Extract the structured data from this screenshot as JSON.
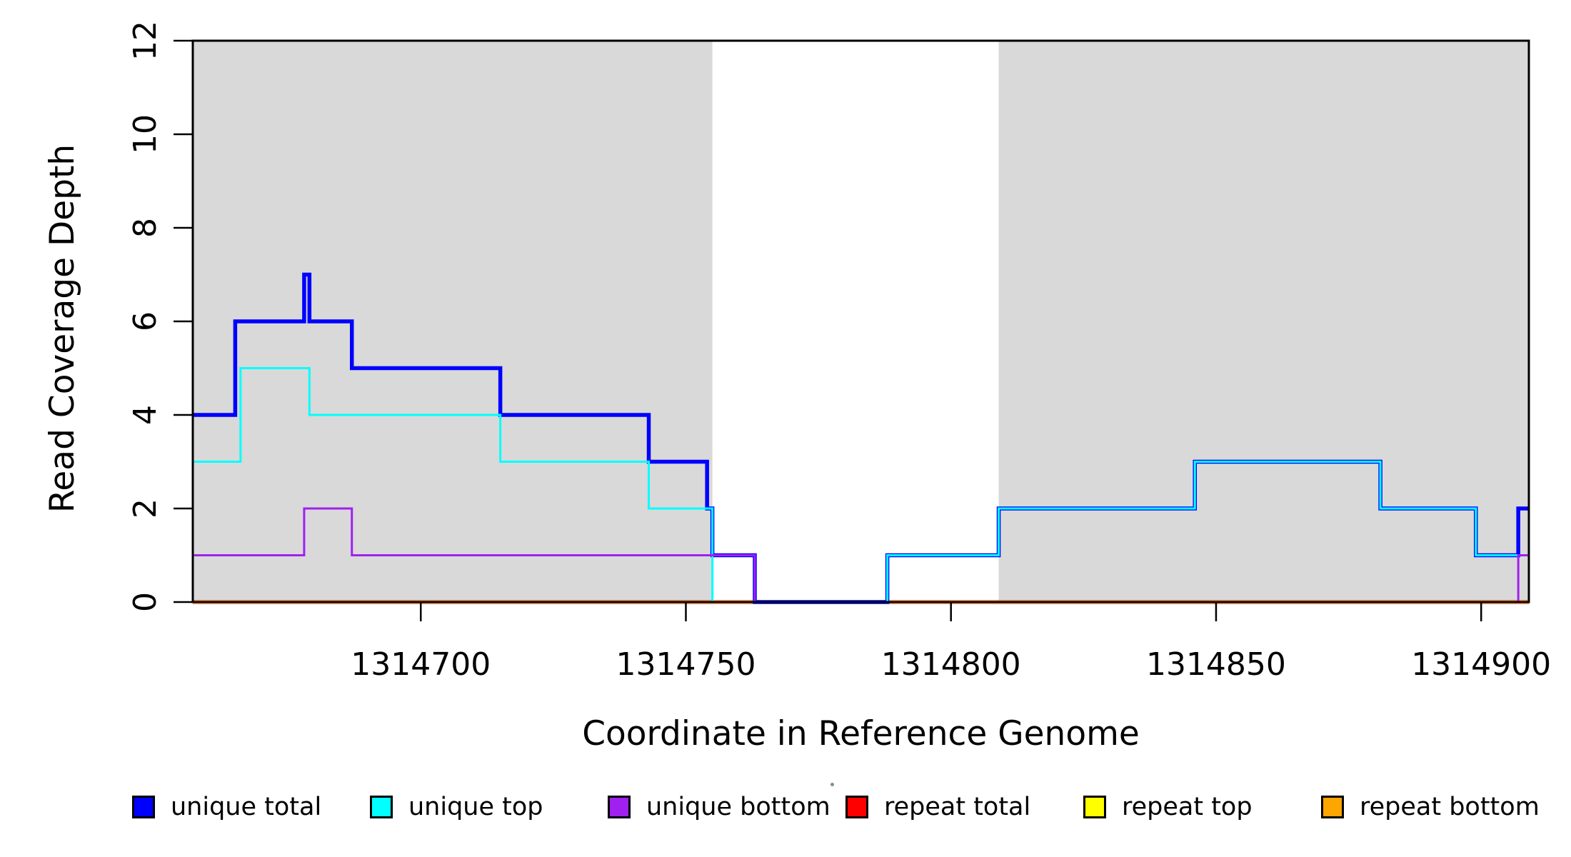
{
  "chart_data": {
    "type": "line",
    "subtype": "step-coverage",
    "title": "",
    "xlabel": "Coordinate in Reference Genome",
    "ylabel": "Read Coverage Depth",
    "xlim": [
      1314657,
      1314909
    ],
    "ylim": [
      0,
      12
    ],
    "xticks": [
      1314700,
      1314750,
      1314800,
      1314850,
      1314900
    ],
    "xtick_labels": [
      "1314700",
      "1314750",
      "1314800",
      "1314850",
      "1314900"
    ],
    "yticks": [
      0,
      2,
      4,
      6,
      8,
      10,
      12
    ],
    "ytick_labels": [
      "0",
      "2",
      "4",
      "6",
      "8",
      "10",
      "12"
    ],
    "grid": false,
    "legend_position": "bottom",
    "background_color": "#FFFFFF",
    "shaded_region_color": "#D9D9D9",
    "shaded_regions": [
      {
        "x_start": 1314657,
        "x_end": 1314755
      },
      {
        "x_start": 1314809,
        "x_end": 1314909
      }
    ],
    "series": [
      {
        "name": "repeat total",
        "color": "#FF0000",
        "line_width": 5,
        "points": [
          [
            1314657,
            0
          ]
        ]
      },
      {
        "name": "repeat top",
        "color": "#FFFF00",
        "line_width": 4,
        "points": [
          [
            1314657,
            0
          ]
        ]
      },
      {
        "name": "repeat bottom",
        "color": "#FFA500",
        "line_width": 3.5,
        "points": [
          [
            1314657,
            0
          ]
        ]
      },
      {
        "name": "unique total",
        "color": "#0000FF",
        "line_width": 5.5,
        "points": [
          [
            1314657,
            4
          ],
          [
            1314665,
            6
          ],
          [
            1314678,
            7
          ],
          [
            1314679,
            6
          ],
          [
            1314687,
            5
          ],
          [
            1314715,
            4
          ],
          [
            1314743,
            3
          ],
          [
            1314754,
            2
          ],
          [
            1314755,
            1
          ],
          [
            1314763,
            0
          ],
          [
            1314788,
            1
          ],
          [
            1314809,
            2
          ],
          [
            1314846,
            3
          ],
          [
            1314881,
            2
          ],
          [
            1314899,
            1
          ],
          [
            1314907,
            2
          ]
        ]
      },
      {
        "name": "unique top",
        "color": "#00FFFF",
        "line_width": 3,
        "points": [
          [
            1314657,
            3
          ],
          [
            1314666,
            5
          ],
          [
            1314679,
            4
          ],
          [
            1314715,
            3
          ],
          [
            1314743,
            2
          ],
          [
            1314755,
            0
          ],
          [
            1314788,
            1
          ],
          [
            1314809,
            2
          ],
          [
            1314846,
            3
          ],
          [
            1314881,
            2
          ],
          [
            1314899,
            1
          ]
        ]
      },
      {
        "name": "unique bottom",
        "color": "#A020F0",
        "line_width": 3,
        "points": [
          [
            1314657,
            1
          ],
          [
            1314678,
            2
          ],
          [
            1314687,
            1
          ],
          [
            1314763,
            0
          ],
          [
            1314907,
            1
          ]
        ]
      }
    ],
    "legend": [
      {
        "label": "unique total",
        "color": "#0000FF"
      },
      {
        "label": "unique top",
        "color": "#00FFFF"
      },
      {
        "label": "unique bottom",
        "color": "#A020F0"
      },
      {
        "label": "repeat total",
        "color": "#FF0000"
      },
      {
        "label": "repeat top",
        "color": "#FFFF00"
      },
      {
        "label": "repeat bottom",
        "color": "#FFA500"
      }
    ]
  }
}
